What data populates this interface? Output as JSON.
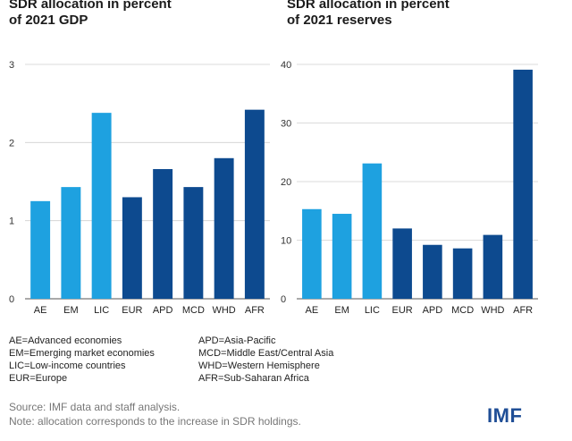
{
  "chart_data": [
    {
      "type": "bar",
      "title_lines": [
        "SDR allocation in percent",
        "of 2021 GDP"
      ],
      "categories": [
        "AE",
        "EM",
        "LIC",
        "EUR",
        "APD",
        "MCD",
        "WHD",
        "AFR"
      ],
      "values": [
        1.25,
        1.43,
        2.38,
        1.3,
        1.66,
        1.43,
        1.8,
        2.42
      ],
      "yticks": [
        "0",
        "1",
        "2",
        "3"
      ],
      "ylim": [
        0,
        3
      ],
      "colors": [
        "#1ea1e0",
        "#1ea1e0",
        "#1ea1e0",
        "#0d4a8f",
        "#0d4a8f",
        "#0d4a8f",
        "#0d4a8f",
        "#0d4a8f"
      ],
      "grid": true
    },
    {
      "type": "bar",
      "title_lines": [
        "SDR allocation in percent",
        "of 2021 reserves"
      ],
      "categories": [
        "AE",
        "EM",
        "LIC",
        "EUR",
        "APD",
        "MCD",
        "WHD",
        "AFR"
      ],
      "values": [
        15.3,
        14.5,
        23.1,
        12.0,
        9.2,
        8.6,
        10.9,
        39.1
      ],
      "yticks": [
        "0",
        "10",
        "20",
        "30",
        "40"
      ],
      "ylim": [
        0,
        40
      ],
      "colors": [
        "#1ea1e0",
        "#1ea1e0",
        "#1ea1e0",
        "#0d4a8f",
        "#0d4a8f",
        "#0d4a8f",
        "#0d4a8f",
        "#0d4a8f"
      ],
      "grid": true
    }
  ],
  "legend": {
    "left": [
      "AE=Advanced economies",
      "EM=Emerging market economies",
      "LIC=Low-income countries",
      "EUR=Europe"
    ],
    "right": [
      "APD=Asia-Pacific",
      "MCD=Middle East/Central Asia",
      "WHD=Western Hemisphere",
      "AFR=Sub-Saharan Africa"
    ]
  },
  "footnotes": {
    "source": "Source: IMF data and staff analysis.",
    "note": "Note: allocation corresponds to the increase in SDR holdings."
  },
  "logo": "IMF"
}
